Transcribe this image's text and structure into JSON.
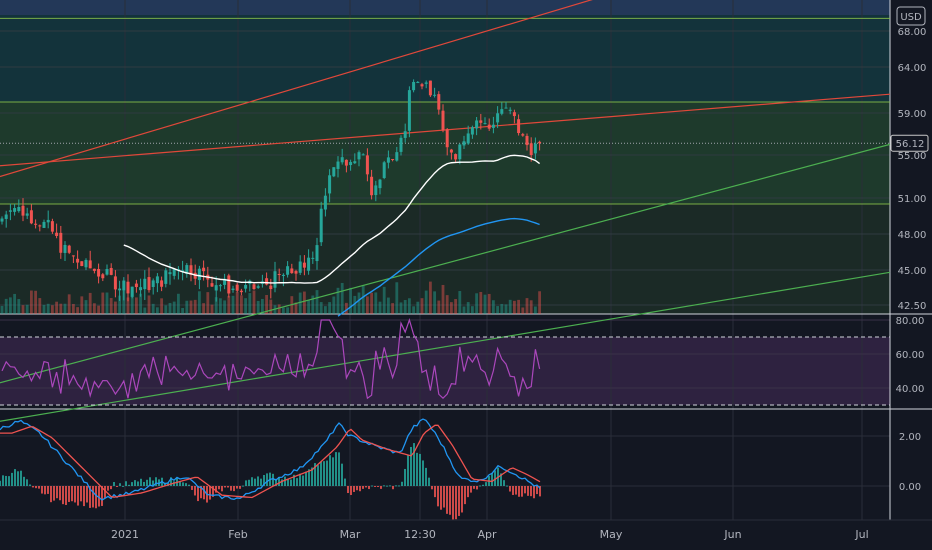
{
  "currency_badge": "USD",
  "last_price_label": "56.12",
  "colors": {
    "background": "#131722",
    "grid": "#2a2e39",
    "up": "#26a69a",
    "down": "#ef5350",
    "trendline": "#e0483a",
    "channel_line": "#4caf50",
    "horizontal_level": "#8bc34a",
    "ma_long": "#ffffff",
    "ma_short": "#2196f3",
    "rsi": "#ab47bc",
    "macd": "#2196f3",
    "signal": "#ef5350",
    "top_band": "#233858",
    "price_zone_upper": "#13333b",
    "price_zone_lower": "#1e3a2c",
    "rsi_band": "#2e2240"
  },
  "chart_data": [
    {
      "type": "candlestick",
      "panel": "price",
      "y_ticks": [
        "68.00",
        "64.00",
        "59.00",
        "55.00",
        "51.00",
        "48.00",
        "45.00",
        "42.50"
      ],
      "x_ticks": [
        "2021",
        "Feb",
        "Mar",
        "12:30",
        "Apr",
        "May",
        "Jun",
        "Jul"
      ],
      "last_price": 56.12,
      "horizontal_levels": [
        69.4,
        60.2,
        50.5
      ],
      "trendlines": [
        {
          "color": "red",
          "from": [
            "2020-12",
            54.0
          ],
          "to": [
            "2021-07",
            60.8
          ]
        },
        {
          "color": "red",
          "from": [
            "2020-12",
            53.0
          ],
          "to": [
            "2021-04",
            68.0
          ]
        },
        {
          "color": "green",
          "from": [
            "2021-02",
            41.5
          ],
          "to": [
            "2021-07",
            55.3
          ]
        },
        {
          "color": "green",
          "from": [
            "2021-05",
            41.5
          ],
          "to": [
            "2021-07",
            44.5
          ]
        }
      ],
      "moving_averages": [
        {
          "color": "white",
          "end": 54.2
        },
        {
          "color": "blue",
          "end": 48.8
        }
      ]
    },
    {
      "type": "line",
      "panel": "rsi",
      "y_ticks": [
        "80.00",
        "60.00",
        "40.00"
      ],
      "bands": [
        70,
        30
      ]
    },
    {
      "type": "histogram+line",
      "panel": "macd",
      "y_ticks": [
        "2.00",
        "0.00"
      ]
    }
  ]
}
